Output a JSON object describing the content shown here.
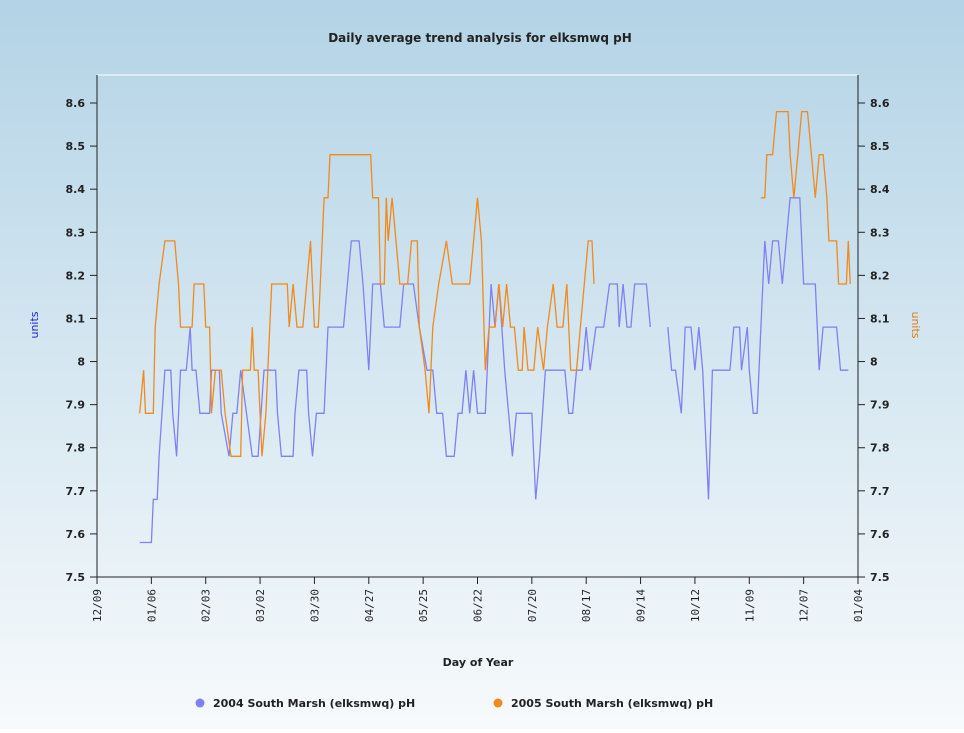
{
  "chart_data": {
    "type": "line",
    "title": "Daily average trend analysis for elksmwq pH",
    "x_label": "Day of Year",
    "y_label": "units",
    "y2_label": "units",
    "xlim": [
      0,
      392
    ],
    "xticks": [
      {
        "value": 0,
        "label": "12/09"
      },
      {
        "value": 28,
        "label": "01/06"
      },
      {
        "value": 56,
        "label": "02/03"
      },
      {
        "value": 84,
        "label": "03/02"
      },
      {
        "value": 112,
        "label": "03/30"
      },
      {
        "value": 140,
        "label": "04/27"
      },
      {
        "value": 168,
        "label": "05/25"
      },
      {
        "value": 196,
        "label": "06/22"
      },
      {
        "value": 224,
        "label": "07/20"
      },
      {
        "value": 252,
        "label": "08/17"
      },
      {
        "value": 280,
        "label": "09/14"
      },
      {
        "value": 308,
        "label": "10/12"
      },
      {
        "value": 336,
        "label": "11/09"
      },
      {
        "value": 364,
        "label": "12/07"
      },
      {
        "value": 392,
        "label": "01/04"
      }
    ],
    "ylim": [
      7.5,
      8.665
    ],
    "yticks": [
      7.5,
      7.6,
      7.7,
      7.8,
      7.9,
      8.0,
      8.1,
      8.2,
      8.3,
      8.4,
      8.5,
      8.6
    ],
    "y2lim": [
      7.5,
      8.665
    ],
    "y2ticks": [
      7.5,
      7.6,
      7.7,
      7.8,
      7.9,
      8.0,
      8.1,
      8.2,
      8.3,
      8.4,
      8.5,
      8.6
    ],
    "series": [
      {
        "name": "2004 South Marsh (elksmwq) pH",
        "color": "#8080f2",
        "x": [
          22,
          28,
          29,
          31,
          32,
          35,
          38,
          39,
          41,
          43,
          46,
          48,
          49,
          51,
          53,
          58,
          59,
          63,
          64,
          68,
          70,
          72,
          74,
          80,
          83,
          86,
          92,
          93,
          95,
          101,
          102,
          104,
          108,
          109,
          111,
          113,
          117,
          119,
          127,
          129,
          131,
          135,
          137,
          140,
          142,
          146,
          148,
          156,
          158,
          163,
          166,
          170,
          173,
          175,
          178,
          180,
          184,
          186,
          188,
          190,
          192,
          194,
          196,
          200,
          203,
          205,
          207,
          210,
          212,
          214,
          216,
          224,
          226,
          228,
          231,
          241,
          243,
          245,
          247,
          250,
          252,
          254,
          257,
          261,
          264,
          268,
          269,
          271,
          273,
          275,
          277,
          283,
          285,
          290,
          294,
          296,
          298,
          301,
          303,
          306,
          308,
          310,
          312,
          315,
          317,
          326,
          328,
          331,
          332,
          335,
          336,
          338,
          340,
          342,
          344,
          346,
          348,
          351,
          353,
          355,
          357,
          362,
          364,
          370,
          372,
          374,
          381,
          383,
          387
        ],
        "values": [
          7.58,
          7.58,
          7.68,
          7.68,
          7.78,
          7.98,
          7.98,
          7.88,
          7.78,
          7.98,
          7.98,
          8.08,
          7.98,
          7.98,
          7.88,
          7.88,
          7.98,
          7.98,
          7.88,
          7.78,
          7.88,
          7.88,
          7.98,
          7.78,
          7.78,
          7.98,
          7.98,
          7.88,
          7.78,
          7.78,
          7.88,
          7.98,
          7.98,
          7.88,
          7.78,
          7.88,
          7.88,
          8.08,
          8.08,
          8.18,
          8.28,
          8.28,
          8.18,
          7.98,
          8.18,
          8.18,
          8.08,
          8.08,
          8.18,
          8.18,
          8.08,
          7.98,
          7.98,
          7.88,
          7.88,
          7.78,
          7.78,
          7.88,
          7.88,
          7.98,
          7.88,
          7.98,
          7.88,
          7.88,
          8.18,
          8.08,
          8.18,
          7.98,
          7.88,
          7.78,
          7.88,
          7.88,
          7.68,
          7.78,
          7.98,
          7.98,
          7.88,
          7.88,
          7.98,
          7.98,
          8.08,
          7.98,
          8.08,
          8.08,
          8.18,
          8.18,
          8.08,
          8.18,
          8.08,
          8.08,
          8.18,
          8.18,
          8.08,
          null,
          8.08,
          7.98,
          7.98,
          7.88,
          8.08,
          8.08,
          7.98,
          8.08,
          7.98,
          7.68,
          7.98,
          7.98,
          8.08,
          8.08,
          7.98,
          8.08,
          7.98,
          7.88,
          7.88,
          8.08,
          8.28,
          8.18,
          8.28,
          8.28,
          8.18,
          8.28,
          8.38,
          8.38,
          8.18,
          8.18,
          7.98,
          8.08,
          8.08,
          7.98,
          7.98
        ]
      },
      {
        "name": "2005 South Marsh (elksmwq) pH",
        "color": "#f08a1c",
        "axis": "y2",
        "x": [
          22,
          24,
          25,
          29,
          30,
          32,
          35,
          40,
          42,
          43,
          49,
          50,
          55,
          56,
          58,
          59,
          61,
          64,
          66,
          69,
          74,
          75,
          79,
          80,
          81,
          83,
          85,
          87,
          90,
          98,
          99,
          101,
          103,
          106,
          108,
          110,
          112,
          114,
          115,
          117,
          119,
          120,
          141,
          142,
          145,
          146,
          148,
          149,
          150,
          152,
          154,
          156,
          160,
          162,
          165,
          166,
          169,
          171,
          173,
          176,
          180,
          183,
          192,
          194,
          196,
          198,
          200,
          202,
          205,
          207,
          209,
          211,
          213,
          215,
          217,
          219,
          220,
          222,
          225,
          227,
          230,
          232,
          235,
          237,
          240,
          242,
          244,
          247,
          249,
          251,
          253,
          255,
          256,
          300,
          342,
          344,
          345,
          348,
          350,
          356,
          357,
          359,
          361,
          363,
          366,
          368,
          370,
          372,
          374,
          376,
          377,
          381,
          382,
          386,
          387,
          388
        ],
        "values": [
          7.88,
          7.98,
          7.88,
          7.88,
          8.08,
          8.18,
          8.28,
          8.28,
          8.18,
          8.08,
          8.08,
          8.18,
          8.18,
          8.08,
          8.08,
          7.88,
          7.98,
          7.98,
          7.88,
          7.78,
          7.78,
          7.98,
          7.98,
          8.08,
          7.98,
          7.98,
          7.78,
          7.88,
          8.18,
          8.18,
          8.08,
          8.18,
          8.08,
          8.08,
          8.18,
          8.28,
          8.08,
          8.08,
          8.18,
          8.38,
          8.38,
          8.48,
          8.48,
          8.38,
          8.38,
          8.18,
          8.18,
          8.38,
          8.28,
          8.38,
          8.28,
          8.18,
          8.18,
          8.28,
          8.28,
          8.08,
          7.98,
          7.88,
          8.08,
          8.18,
          8.28,
          8.18,
          8.18,
          8.28,
          8.38,
          8.28,
          7.98,
          8.08,
          8.08,
          8.18,
          8.08,
          8.18,
          8.08,
          8.08,
          7.98,
          7.98,
          8.08,
          7.98,
          7.98,
          8.08,
          7.98,
          8.08,
          8.18,
          8.08,
          8.08,
          8.18,
          7.98,
          7.98,
          8.08,
          8.18,
          8.28,
          8.28,
          8.18,
          null,
          8.38,
          8.38,
          8.48,
          8.48,
          8.58,
          8.58,
          8.48,
          8.38,
          8.48,
          8.58,
          8.58,
          8.48,
          8.38,
          8.48,
          8.48,
          8.38,
          8.28,
          8.28,
          8.18,
          8.18,
          8.28,
          8.18
        ]
      }
    ]
  }
}
